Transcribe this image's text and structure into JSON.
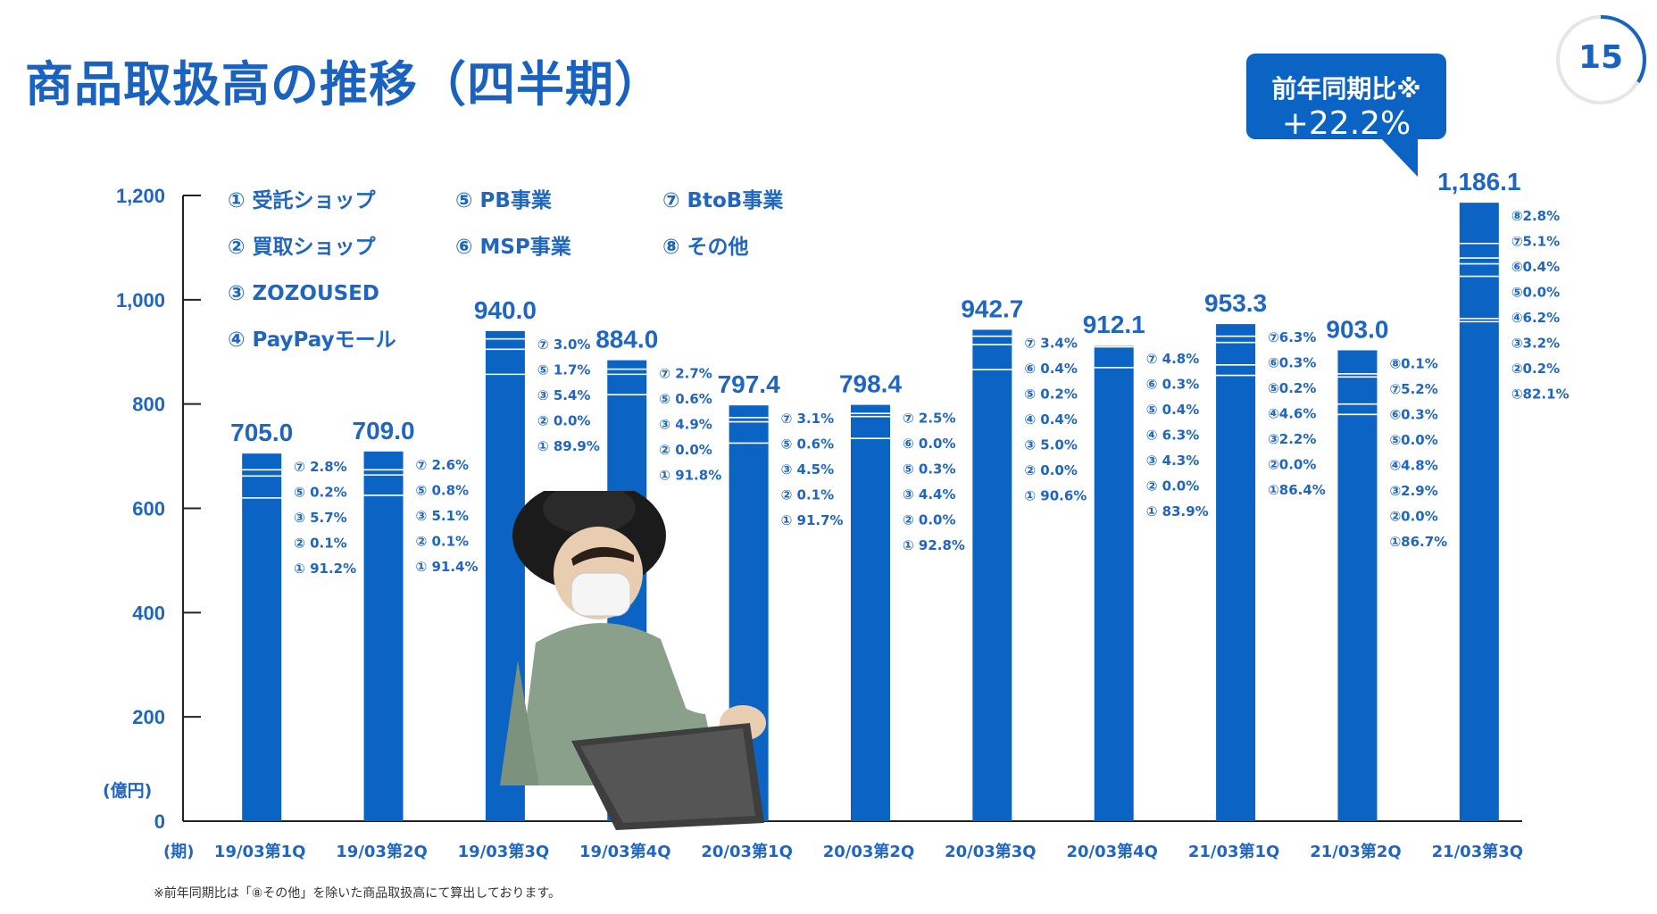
{
  "title": "商品取扱高の推移（四半期）",
  "page_number": "15",
  "yoy_callout": {
    "label": "前年同期比※",
    "value": "+22.2%"
  },
  "footnote": "※前年同期比は「⑧その他」を除いた商品取扱高にて算出しております。",
  "colors": {
    "bar": "#0b63c4",
    "accent": "#1a62c0",
    "text": "#1f66c2"
  },
  "chart_data": {
    "type": "bar",
    "ylim": [
      0,
      1200
    ],
    "yticks": [
      "0",
      "200",
      "400",
      "600",
      "800",
      "1,000",
      "1,200"
    ],
    "ylabel": "(億円)",
    "xlabel": "(期)",
    "legend": [
      "① 受託ショップ",
      "② 買取ショップ",
      "③ ZOZOUSED",
      "④ PayPayモール",
      "⑤ PB事業",
      "⑥ MSP事業",
      "⑦ BtoB事業",
      "⑧ その他"
    ],
    "categories": [
      "19/03第1Q",
      "19/03第2Q",
      "19/03第3Q",
      "19/03第4Q",
      "20/03第1Q",
      "20/03第2Q",
      "20/03第3Q",
      "20/03第4Q",
      "21/03第1Q",
      "21/03第2Q",
      "21/03第3Q"
    ],
    "values": [
      705.0,
      709.0,
      940.0,
      884.0,
      797.4,
      798.4,
      942.7,
      912.1,
      953.3,
      903.0,
      1186.1
    ],
    "value_labels": [
      "705.0",
      "709.0",
      "940.0",
      "884.0",
      "797.4",
      "798.4",
      "942.7",
      "912.1",
      "953.3",
      "903.0",
      "1,186.1"
    ],
    "breakdowns": [
      [
        "⑦ 2.8%",
        "⑤ 0.2%",
        "③ 5.7%",
        "② 0.1%",
        "① 91.2%"
      ],
      [
        "⑦ 2.6%",
        "⑤ 0.8%",
        "③ 5.1%",
        "② 0.1%",
        "① 91.4%"
      ],
      [
        "⑦ 3.0%",
        "⑤ 1.7%",
        "③ 5.4%",
        "② 0.0%",
        "① 89.9%"
      ],
      [
        "⑦ 2.7%",
        "⑤ 0.6%",
        "③ 4.9%",
        "② 0.0%",
        "① 91.8%"
      ],
      [
        "⑦ 3.1%",
        "⑤ 0.6%",
        "③ 4.5%",
        "② 0.1%",
        "① 91.7%"
      ],
      [
        "⑦ 2.5%",
        "⑥ 0.0%",
        "⑤ 0.3%",
        "③ 4.4%",
        "② 0.0%",
        "① 92.8%"
      ],
      [
        "⑦ 3.4%",
        "⑥ 0.4%",
        "⑤ 0.2%",
        "④ 0.4%",
        "③ 5.0%",
        "② 0.0%",
        "① 90.6%"
      ],
      [
        "⑦ 4.8%",
        "⑥ 0.3%",
        "⑤ 0.4%",
        "④ 6.3%",
        "③ 4.3%",
        "② 0.0%",
        "① 83.9%"
      ],
      [
        "⑦6.3%",
        "⑥0.3%",
        "⑤0.2%",
        "④4.6%",
        "③2.2%",
        "②0.0%",
        "①86.4%"
      ],
      [
        "⑧0.1%",
        "⑦5.2%",
        "⑥0.3%",
        "⑤0.0%",
        "④4.8%",
        "③2.9%",
        "②0.0%",
        "①86.7%"
      ],
      [
        "⑧2.8%",
        "⑦5.1%",
        "⑥0.4%",
        "⑤0.0%",
        "④6.2%",
        "③3.2%",
        "②0.2%",
        "①82.1%"
      ]
    ],
    "separator_values": [
      [
        620,
        662,
        674
      ],
      [
        625,
        664,
        674
      ],
      [
        857,
        905,
        925
      ],
      [
        818,
        857,
        867
      ],
      [
        725,
        766,
        774
      ],
      [
        734,
        776,
        782
      ],
      [
        866,
        914,
        930,
        944
      ],
      [
        870,
        910,
        910,
        925
      ],
      [
        855,
        875,
        918,
        930
      ],
      [
        780,
        800,
        852,
        858
      ],
      [
        958,
        964,
        1045,
        1069,
        1080,
        1108
      ]
    ]
  }
}
